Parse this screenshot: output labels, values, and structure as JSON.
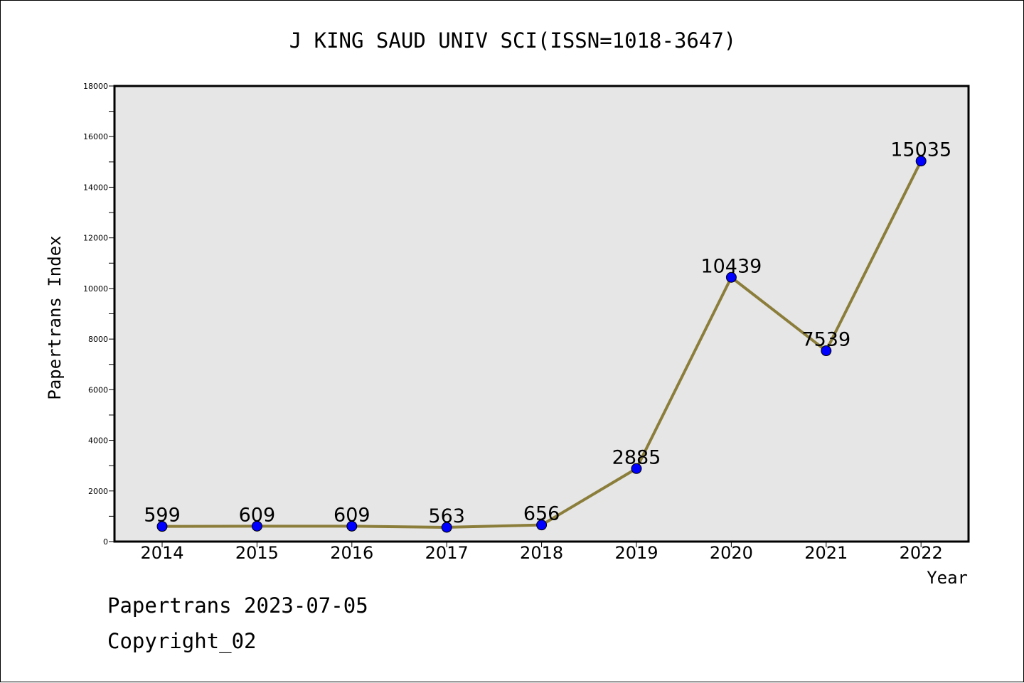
{
  "chart_data": {
    "type": "line",
    "title": "J KING SAUD UNIV SCI(ISSN=1018-3647)",
    "xlabel": "Year",
    "ylabel": "Papertrans Index",
    "categories": [
      "2014",
      "2015",
      "2016",
      "2017",
      "2018",
      "2019",
      "2020",
      "2021",
      "2022"
    ],
    "values": [
      599,
      609,
      609,
      563,
      656,
      2885,
      10439,
      7539,
      15035
    ],
    "data_labels": [
      "599",
      "609",
      "609",
      "563",
      "656",
      "2885",
      "10439",
      "7539",
      "15035"
    ],
    "ylim": [
      0,
      18000
    ],
    "y_ticks": [
      "0",
      "2000",
      "4000",
      "6000",
      "8000",
      "10000",
      "12000",
      "14000",
      "16000",
      "18000"
    ],
    "grid": false,
    "legend": "none",
    "colors": {
      "line": "#8b7d3a",
      "marker": "#0000ff",
      "plot_background": "#e6e6e6"
    }
  },
  "footer": {
    "line1": "Papertrans 2023-07-05",
    "line2": "Copyright_02"
  }
}
